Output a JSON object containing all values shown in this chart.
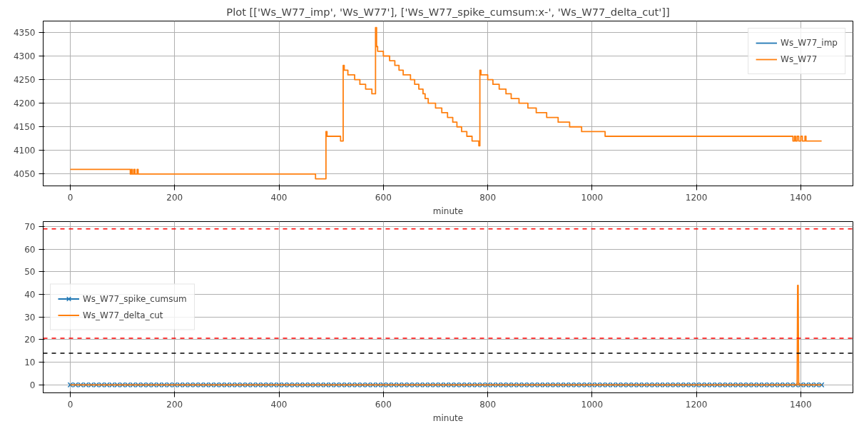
{
  "chart_data": [
    {
      "type": "step",
      "title": "Plot [['Ws_W77_imp', 'Ws_W77'], ['Ws_W77_spike_cumsum:x-', 'Ws_W77_delta_cut']]",
      "xlabel": "minute",
      "xlim": [
        -52,
        1500
      ],
      "xticks": [
        0,
        200,
        400,
        600,
        800,
        1000,
        1200,
        1400
      ],
      "ylim": [
        4025,
        4374
      ],
      "yticks": [
        4050,
        4100,
        4150,
        4200,
        4250,
        4300,
        4350
      ],
      "grid": true,
      "legend": "top right",
      "x": [
        0,
        115,
        117,
        119,
        122,
        124,
        128,
        130,
        470,
        490,
        492,
        518,
        523,
        525,
        532,
        545,
        555,
        566,
        578,
        585,
        587,
        589,
        600,
        612,
        622,
        630,
        638,
        652,
        660,
        668,
        676,
        680,
        686,
        700,
        712,
        723,
        733,
        741,
        750,
        760,
        770,
        783,
        785,
        787,
        800,
        810,
        822,
        835,
        845,
        860,
        877,
        893,
        913,
        935,
        957,
        980,
        1025,
        1385,
        1388,
        1390,
        1393,
        1396,
        1400,
        1403,
        1408,
        1410,
        1440
      ],
      "series": [
        {
          "name": "Ws_W77_imp",
          "color": "#1f77b4",
          "values": [
            null,
            null,
            null,
            null,
            null,
            null,
            null,
            null,
            null,
            null,
            null,
            null,
            null,
            null,
            null,
            null,
            null,
            null,
            null,
            null,
            null,
            null,
            null,
            null,
            null,
            null,
            null,
            null,
            null,
            null,
            null,
            null,
            null,
            null,
            null,
            null,
            null,
            null,
            null,
            null,
            null,
            null,
            null,
            null,
            null,
            null,
            null,
            null,
            null,
            null,
            null,
            null,
            null,
            null,
            null,
            null,
            null,
            null,
            null,
            null,
            null,
            null,
            null,
            null,
            null,
            null,
            null
          ]
        },
        {
          "name": "Ws_W77",
          "color": "#ff7f0e",
          "values": [
            4060,
            4050,
            4060,
            4050,
            4060,
            4050,
            4060,
            4050,
            4040,
            4140,
            4130,
            4120,
            4280,
            4270,
            4260,
            4250,
            4240,
            4230,
            4220,
            4360,
            4320,
            4310,
            4300,
            4290,
            4280,
            4270,
            4260,
            4250,
            4240,
            4230,
            4220,
            4210,
            4200,
            4190,
            4180,
            4170,
            4160,
            4150,
            4140,
            4130,
            4120,
            4110,
            4270,
            4260,
            4250,
            4240,
            4230,
            4220,
            4210,
            4200,
            4190,
            4180,
            4170,
            4160,
            4150,
            4140,
            4130,
            4120,
            4130,
            4120,
            4130,
            4120,
            4130,
            4120,
            4130,
            4120,
            4120
          ]
        }
      ]
    },
    {
      "type": "line",
      "xlabel": "minute",
      "xlim": [
        -52,
        1500
      ],
      "xticks": [
        0,
        200,
        400,
        600,
        800,
        1000,
        1200,
        1400
      ],
      "ylim": [
        -3.5,
        72.2
      ],
      "yticks": [
        0,
        10,
        20,
        30,
        40,
        50,
        60,
        70
      ],
      "grid": true,
      "legend": "left",
      "series": [
        {
          "name": "Ws_W77_spike_cumsum",
          "color": "#1f77b4",
          "marker": "cross",
          "x": [
            0,
            10,
            20,
            30,
            40,
            50,
            60,
            70,
            80,
            90,
            100,
            110,
            120,
            130,
            140,
            150,
            160,
            170,
            180,
            190,
            200,
            210,
            220,
            230,
            240,
            250,
            260,
            270,
            280,
            290,
            300,
            310,
            320,
            330,
            340,
            350,
            360,
            370,
            380,
            390,
            400,
            410,
            420,
            430,
            440,
            450,
            460,
            470,
            480,
            490,
            500,
            510,
            520,
            530,
            540,
            550,
            560,
            570,
            580,
            590,
            600,
            610,
            620,
            630,
            640,
            650,
            660,
            670,
            680,
            690,
            700,
            710,
            720,
            730,
            740,
            750,
            760,
            770,
            780,
            790,
            800,
            810,
            820,
            830,
            840,
            850,
            860,
            870,
            880,
            890,
            900,
            910,
            920,
            930,
            940,
            950,
            960,
            970,
            980,
            990,
            1000,
            1010,
            1020,
            1030,
            1040,
            1050,
            1060,
            1070,
            1080,
            1090,
            1100,
            1110,
            1120,
            1130,
            1140,
            1150,
            1160,
            1170,
            1180,
            1190,
            1200,
            1210,
            1220,
            1230,
            1240,
            1250,
            1260,
            1270,
            1280,
            1290,
            1300,
            1310,
            1320,
            1330,
            1340,
            1350,
            1360,
            1370,
            1380,
            1390,
            1400,
            1410,
            1420,
            1430,
            1440
          ],
          "values": [
            0,
            0,
            0,
            0,
            0,
            0,
            0,
            0,
            0,
            0,
            0,
            0,
            0,
            0,
            0,
            0,
            0,
            0,
            0,
            0,
            0,
            0,
            0,
            0,
            0,
            0,
            0,
            0,
            0,
            0,
            0,
            0,
            0,
            0,
            0,
            0,
            0,
            0,
            0,
            0,
            0,
            0,
            0,
            0,
            0,
            0,
            0,
            0,
            0,
            0,
            0,
            0,
            0,
            0,
            0,
            0,
            0,
            0,
            0,
            0,
            0,
            0,
            0,
            0,
            0,
            0,
            0,
            0,
            0,
            0,
            0,
            0,
            0,
            0,
            0,
            0,
            0,
            0,
            0,
            0,
            0,
            0,
            0,
            0,
            0,
            0,
            0,
            0,
            0,
            0,
            0,
            0,
            0,
            0,
            0,
            0,
            0,
            0,
            0,
            0,
            0,
            0,
            0,
            0,
            0,
            0,
            0,
            0,
            0,
            0,
            0,
            0,
            0,
            0,
            0,
            0,
            0,
            0,
            0,
            0,
            0,
            0,
            0,
            0,
            0,
            0,
            0,
            0,
            0,
            0,
            0,
            0,
            0,
            0,
            0,
            0,
            0,
            0,
            0,
            0,
            0,
            0,
            0,
            0,
            0
          ]
        },
        {
          "name": "Ws_W77_delta_cut",
          "color": "#ff7f0e",
          "x": [
            0,
            1393,
            1394,
            1395,
            1396,
            1440
          ],
          "values": [
            0,
            0,
            44,
            44,
            0,
            0
          ]
        }
      ],
      "ref_lines": [
        {
          "axis": "y",
          "value": 69,
          "color": "#ff0000",
          "line_style": "dashed"
        },
        {
          "axis": "y",
          "value": 20.6,
          "color": "#ff0000",
          "line_style": "dashed"
        },
        {
          "axis": "y",
          "value": 14,
          "color": "#000000",
          "line_style": "dashed"
        }
      ]
    }
  ]
}
